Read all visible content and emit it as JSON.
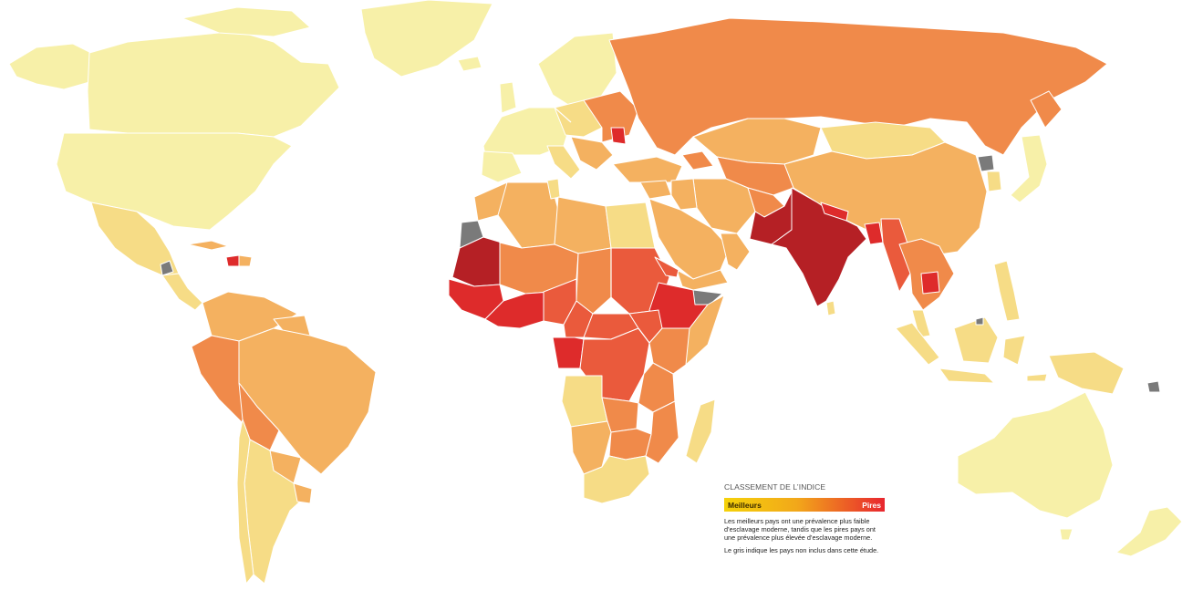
{
  "legend": {
    "title": "CLASSEMENT DE L’INDICE",
    "best_label": "Meilleurs",
    "worst_label": "Pires",
    "description": "Les meilleurs pays ont une prévalence plus faible d’esclavage moderne, tandis que les pires pays ont une prévalence plus élevée d’esclavage moderne.",
    "grey_note": "Le gris indique les pays non inclus dans cette étude."
  },
  "colors": {
    "gradient_start": "#f5d20a",
    "gradient_end": "#e8262f",
    "scale": [
      "#f7f0a8",
      "#f6dc86",
      "#f4b160",
      "#f08a4a",
      "#ea5a3c",
      "#de2b2b",
      "#b52025"
    ],
    "not_included": "#7a7a7a"
  }
}
